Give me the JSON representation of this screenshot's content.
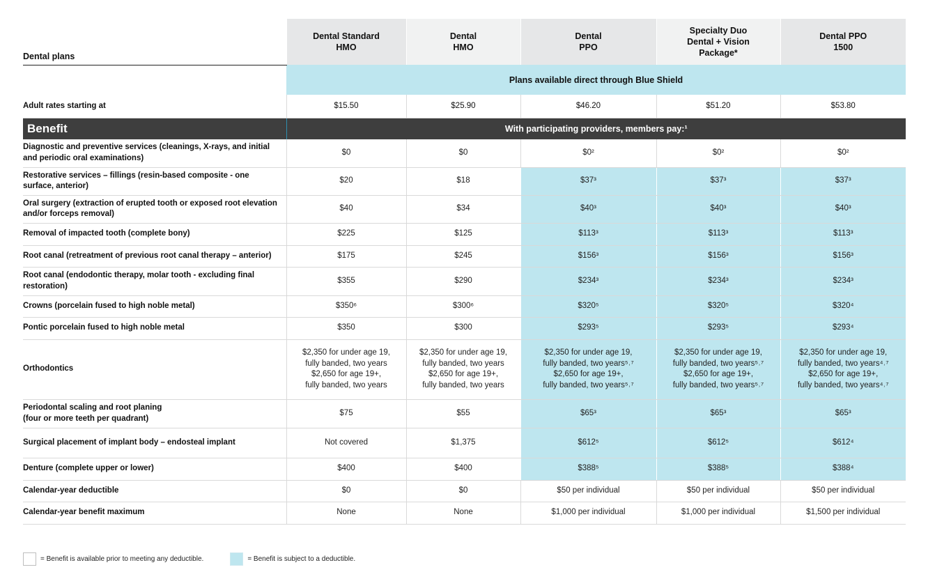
{
  "table_title": "Dental plans",
  "plans": [
    {
      "line1": "Dental Standard",
      "line2": "HMO",
      "line3": ""
    },
    {
      "line1": "Dental",
      "line2": "HMO",
      "line3": ""
    },
    {
      "line1": "Dental",
      "line2": "PPO",
      "line3": ""
    },
    {
      "line1": "Specialty Duo",
      "line2": "Dental + Vision",
      "line3": "Package*"
    },
    {
      "line1": "Dental PPO",
      "line2": "1500",
      "line3": ""
    }
  ],
  "availability_note": "Plans available direct through Blue Shield",
  "adult_rates": {
    "label": "Adult rates starting at",
    "values": [
      "$15.50",
      "$25.90",
      "$46.20",
      "$51.20",
      "$53.80"
    ]
  },
  "benefit_header": {
    "label": "Benefit",
    "message": "With participating providers, members pay:¹"
  },
  "rows": [
    {
      "label": "Diagnostic and preventive services (cleanings, X-rays, and initial and periodic oral examinations)",
      "values": [
        "$0",
        "$0",
        "$0²",
        "$0²",
        "$0²"
      ],
      "deductible": [
        false,
        false,
        false,
        false,
        false
      ],
      "height": 40
    },
    {
      "label": "Restorative services – fillings (resin-based composite - one surface, anterior)",
      "values": [
        "$20",
        "$18",
        "$37³",
        "$37³",
        "$37³"
      ],
      "deductible": [
        false,
        false,
        true,
        true,
        true
      ],
      "height": 40
    },
    {
      "label": "Oral surgery (extraction of erupted tooth or exposed root elevation and/or forceps removal)",
      "values": [
        "$40",
        "$34",
        "$40³",
        "$40³",
        "$40³"
      ],
      "deductible": [
        false,
        false,
        true,
        true,
        true
      ],
      "height": 40
    },
    {
      "label": "Removal of impacted tooth (complete bony)",
      "values": [
        "$225",
        "$125",
        "$113³",
        "$113³",
        "$113³"
      ],
      "deductible": [
        false,
        false,
        true,
        true,
        true
      ],
      "height": 32
    },
    {
      "label": "Root canal (retreatment of previous root canal therapy – anterior)",
      "values": [
        "$175",
        "$245",
        "$156³",
        "$156³",
        "$156³"
      ],
      "deductible": [
        false,
        false,
        true,
        true,
        true
      ],
      "height": 31
    },
    {
      "label": "Root canal (endodontic therapy, molar tooth - excluding final restoration)",
      "values": [
        "$355",
        "$290",
        "$234³",
        "$234³",
        "$234³"
      ],
      "deductible": [
        false,
        false,
        true,
        true,
        true
      ],
      "height": 41
    },
    {
      "label": "Crowns (porcelain fused to high noble metal)",
      "values": [
        "$350⁶",
        "$300⁶",
        "$320⁵",
        "$320⁵",
        "$320⁴"
      ],
      "deductible": [
        false,
        false,
        true,
        true,
        true
      ],
      "height": 31
    },
    {
      "label": "Pontic porcelain fused to high noble metal",
      "values": [
        "$350",
        "$300",
        "$293⁵",
        "$293⁵",
        "$293⁴"
      ],
      "deductible": [
        false,
        false,
        true,
        true,
        true
      ],
      "height": 32
    },
    {
      "label": "Orthodontics",
      "values": [
        "$2,350 for under age 19,\nfully banded, two years\n$2,650 for age 19+,\nfully banded, two years",
        "$2,350 for under age 19,\nfully banded, two years\n$2,650 for age 19+,\nfully banded, two years",
        "$2,350 for under age 19,\nfully banded, two years⁵˒⁷\n$2,650 for age 19+,\nfully banded, two years⁵˒⁷",
        "$2,350 for under age 19,\nfully banded, two years⁵˒⁷\n$2,650 for age 19+,\nfully banded, two years⁵˒⁷",
        "$2,350 for under age 19,\nfully banded, two years⁴˒⁷\n$2,650 for age 19+,\nfully banded, two years⁴˒⁷"
      ],
      "deductible": [
        false,
        false,
        true,
        true,
        true
      ],
      "height": 86
    },
    {
      "label": "Periodontal scaling and root planing\n(four or more teeth per quadrant)",
      "values": [
        "$75",
        "$55",
        "$65³",
        "$65³",
        "$65³"
      ],
      "deductible": [
        false,
        false,
        true,
        true,
        true
      ],
      "height": 41
    },
    {
      "label": "Surgical placement of implant body – endosteal implant",
      "values": [
        "Not covered",
        "$1,375",
        "$612⁵",
        "$612⁵",
        "$612⁴"
      ],
      "deductible": [
        false,
        false,
        true,
        true,
        true
      ],
      "height": 43
    },
    {
      "label": "Denture (complete upper or lower)",
      "values": [
        "$400",
        "$400",
        "$388⁵",
        "$388⁵",
        "$388⁴"
      ],
      "deductible": [
        false,
        false,
        true,
        true,
        true
      ],
      "height": 32
    },
    {
      "label": "Calendar-year deductible",
      "values": [
        "$0",
        "$0",
        "$50 per individual",
        "$50 per individual",
        "$50 per individual"
      ],
      "deductible": [
        false,
        false,
        false,
        false,
        false
      ],
      "height": 31
    },
    {
      "label": "Calendar-year benefit maximum",
      "values": [
        "None",
        "None",
        "$1,000 per individual",
        "$1,000 per individual",
        "$1,500 per individual"
      ],
      "deductible": [
        false,
        false,
        false,
        false,
        false
      ],
      "height": 32
    }
  ],
  "legend": {
    "no_deductible": "= Benefit is available prior to meeting any deductible.",
    "deductible": "= Benefit is subject to a deductible."
  },
  "colors": {
    "deductible_fill": "#bee6ef",
    "benefit_bar": "#3e3e3e"
  }
}
